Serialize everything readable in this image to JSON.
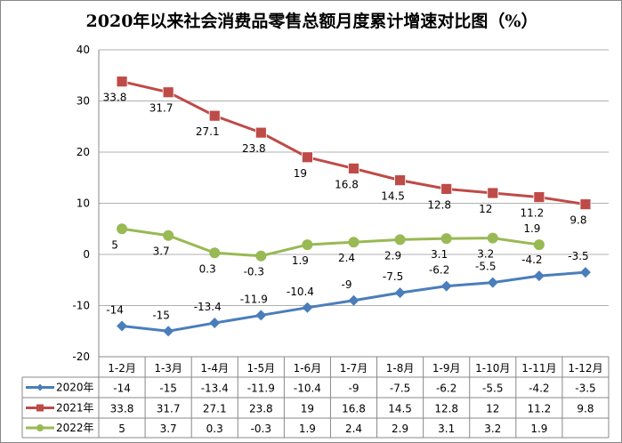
{
  "chart_data": {
    "type": "line",
    "title": "2020年以来社会消费品零售总额月度累计增速对比图（%）",
    "categories": [
      "1-2月",
      "1-3月",
      "1-4月",
      "1-5月",
      "1-6月",
      "1-7月",
      "1-8月",
      "1-9月",
      "1-10月",
      "1-11月",
      "1-12月"
    ],
    "ylim": [
      -20,
      40
    ],
    "yticks": [
      -20,
      -10,
      0,
      10,
      20,
      30,
      40
    ],
    "grid": true,
    "legend": "data-table",
    "series": [
      {
        "name": "2020年",
        "color": "#4a7ebb",
        "marker": "diamond",
        "values": [
          -14,
          -15,
          -13.4,
          -11.9,
          -10.4,
          -9,
          -7.5,
          -6.2,
          -5.5,
          -4.2,
          -3.5
        ],
        "label_pos": "above"
      },
      {
        "name": "2021年",
        "color": "#be4b48",
        "marker": "square",
        "values": [
          33.8,
          31.7,
          27.1,
          23.8,
          19,
          16.8,
          14.5,
          12.8,
          12,
          11.2,
          9.8
        ],
        "label_pos": "below"
      },
      {
        "name": "2022年",
        "color": "#98b954",
        "marker": "circle",
        "values": [
          5,
          3.7,
          0.3,
          -0.3,
          1.9,
          2.4,
          2.9,
          3.1,
          3.2,
          1.9,
          null
        ],
        "label_pos": "below"
      }
    ]
  }
}
